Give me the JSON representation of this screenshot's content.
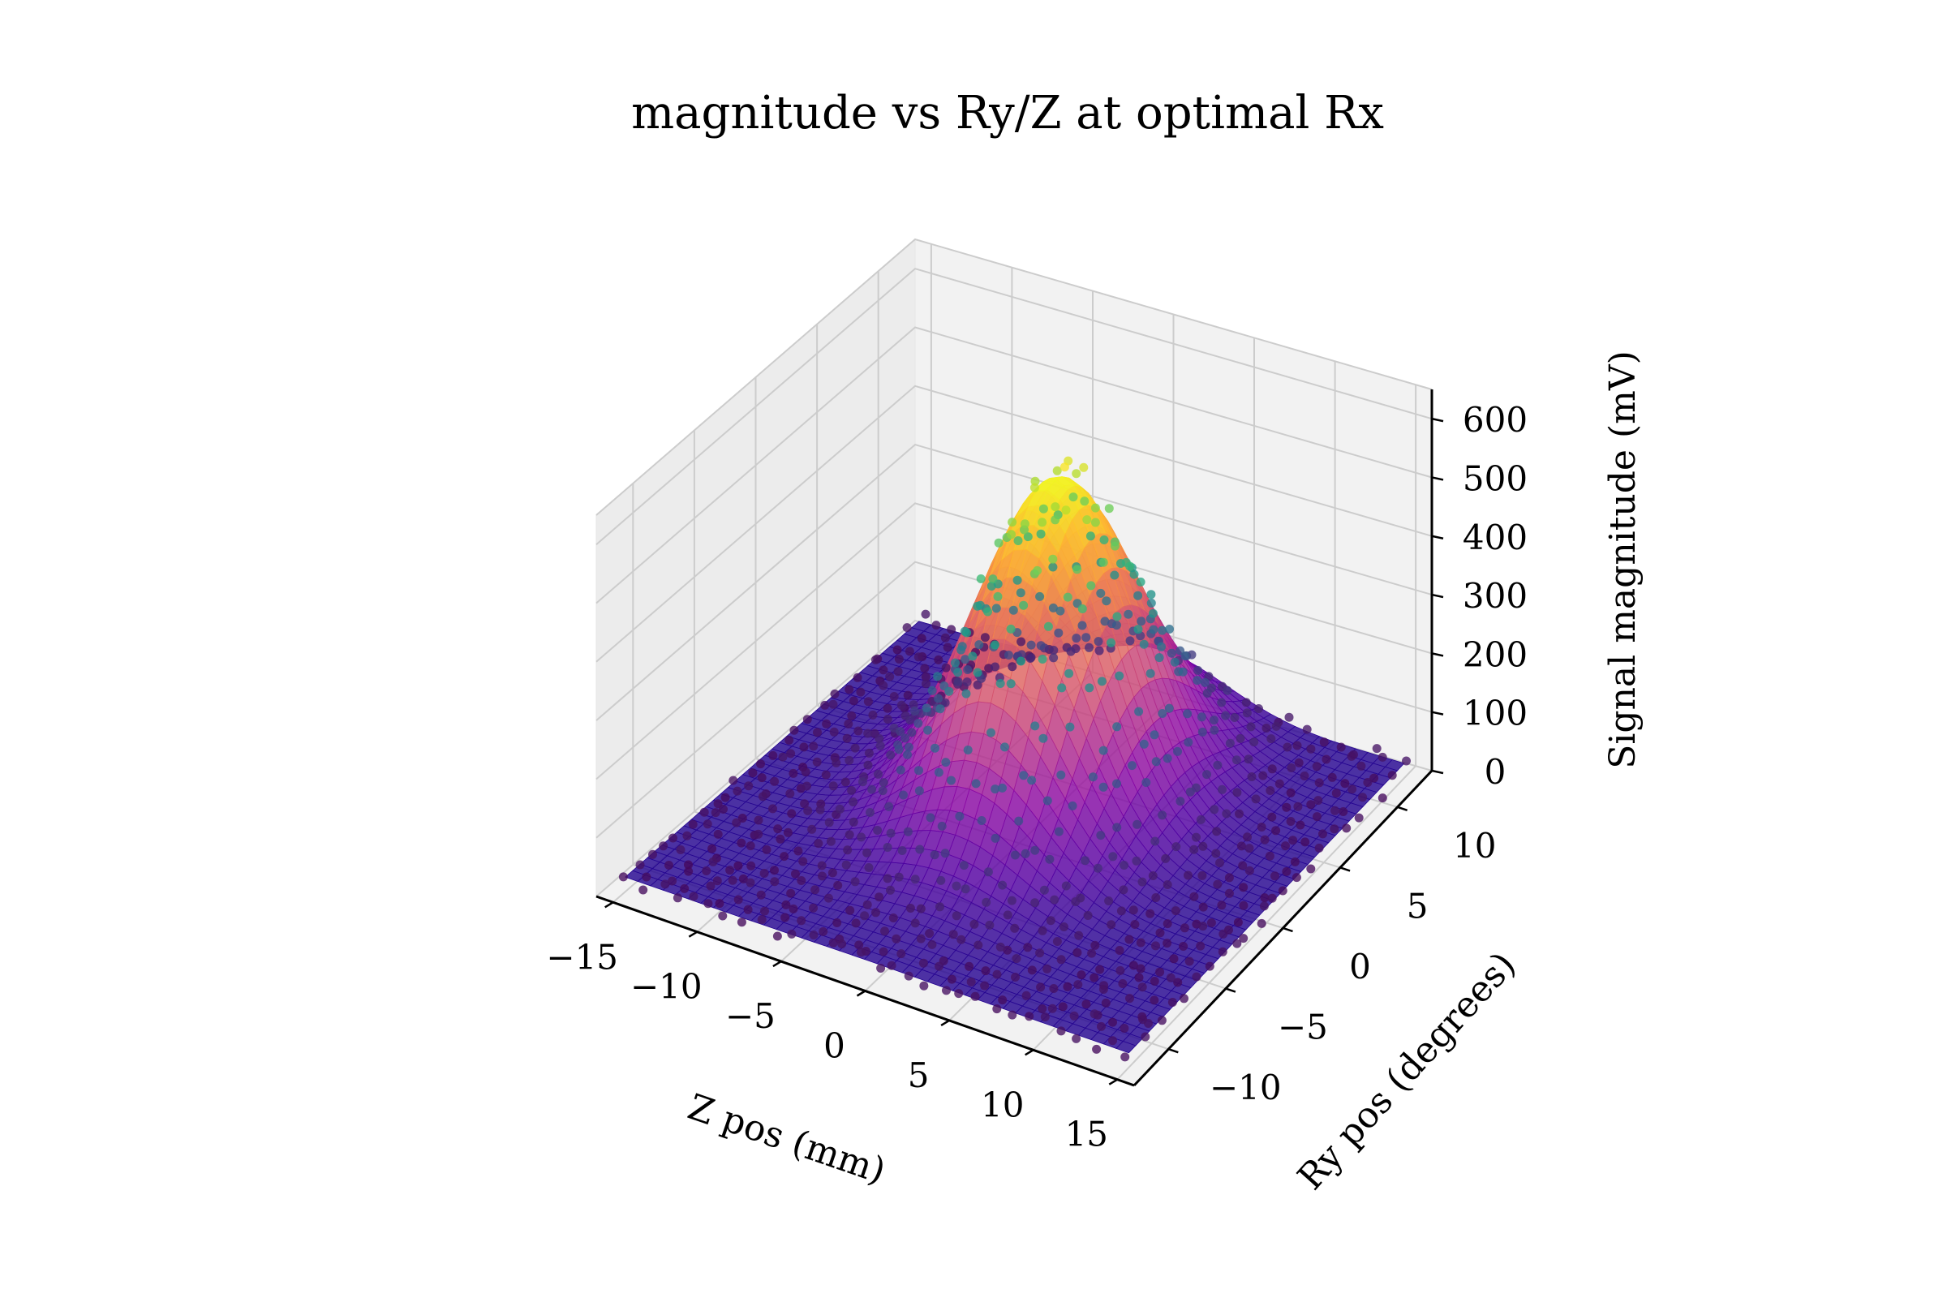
{
  "chart_data": {
    "type": "3d-scatter-surface",
    "title": "magnitude vs Ry/Z at optimal Rx",
    "xlabel": "Z pos (mm)",
    "ylabel": "Ry pos (degrees)",
    "zlabel": "Signal magnitude (mV)",
    "xlim": [
      -16,
      16
    ],
    "ylim": [
      -13,
      13
    ],
    "zlim": [
      0,
      650
    ],
    "xticks": [
      "−15",
      "−10",
      "−5",
      "0",
      "5",
      "10",
      "15"
    ],
    "yticks": [
      "−10",
      "−5",
      "0",
      "5",
      "10"
    ],
    "zticks": [
      "0",
      "100",
      "200",
      "300",
      "400",
      "500",
      "600"
    ],
    "xtick_values": [
      -15,
      -10,
      -5,
      0,
      5,
      10,
      15
    ],
    "ytick_values": [
      -10,
      -5,
      0,
      5,
      10
    ],
    "ztick_values": [
      0,
      100,
      200,
      300,
      400,
      500,
      600
    ],
    "grid": true,
    "series": [
      {
        "kind": "surface",
        "colormap": "plasma",
        "model": "gaussian",
        "peak_mV": 560,
        "center_z_mm": 0,
        "center_ry_deg": 3,
        "sigma_z_mm": 4.0,
        "sigma_ry_deg": 4.5,
        "baseline_mV": 25
      },
      {
        "kind": "scatter",
        "colormap": "viridis",
        "z_range_mm": [
          -15,
          15
        ],
        "ry_range_deg": [
          -12,
          12
        ],
        "z_step_mm": 1,
        "ry_step_deg": 1,
        "note_values": "measured magnitudes following the same peak near Z=0 mm, Ry=3 deg, up to about 560 mV"
      }
    ],
    "colors": {
      "pane_fill": "#f2f2f2",
      "grid": "#cccccc",
      "axis": "#000000"
    }
  }
}
